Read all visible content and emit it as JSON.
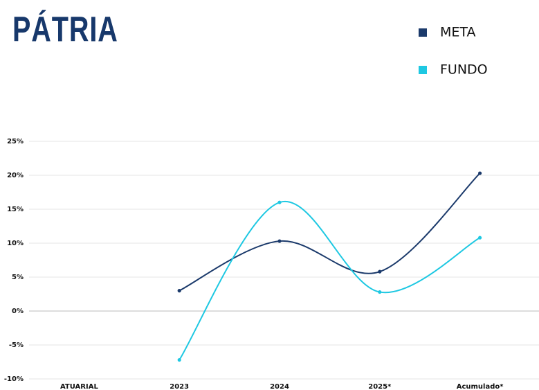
{
  "logo": "PÁTRIA",
  "chart_data": {
    "type": "line",
    "categories": [
      "ATUARIAL",
      "2023",
      "2024",
      "2025*",
      "Acumulado*"
    ],
    "series": [
      {
        "name": "META",
        "color": "#1b3a6b",
        "values": [
          null,
          3.0,
          10.3,
          5.8,
          20.3
        ]
      },
      {
        "name": "FUNDO",
        "color": "#1ec8e2",
        "values": [
          null,
          -7.2,
          16.0,
          2.8,
          10.8
        ]
      }
    ],
    "ylim": [
      -10,
      25
    ],
    "yticks": [
      {
        "value": -10,
        "label": "-10%"
      },
      {
        "value": -5,
        "label": "-5%"
      },
      {
        "value": 0,
        "label": "0%"
      },
      {
        "value": 5,
        "label": "5%"
      },
      {
        "value": 10,
        "label": "10%"
      },
      {
        "value": 15,
        "label": "15%"
      },
      {
        "value": 20,
        "label": "20%"
      },
      {
        "value": 25,
        "label": "25%"
      }
    ],
    "grid": true,
    "legend": "top-right"
  }
}
